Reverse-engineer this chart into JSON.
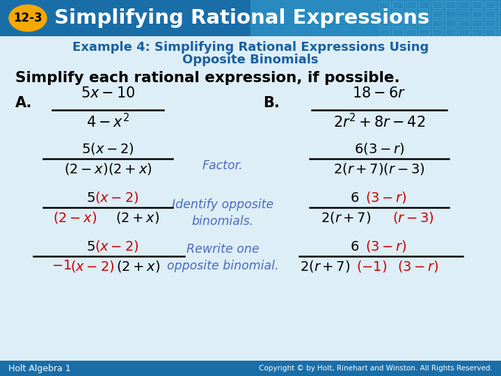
{
  "bg_color": "#ddeef6",
  "header_bg": "#1a6ea8",
  "header_bg2": "#3aaedc",
  "badge_color": "#f5a800",
  "badge_text": "12-3",
  "header_title": "Simplifying Rational Expressions",
  "example_title_line1": "Example 4: Simplifying Rational Expressions Using",
  "example_title_line2": "Opposite Binomials",
  "example_title_color": "#1a5fa0",
  "simplify_text": "Simplify each rational expression, if possible.",
  "blue_annot": "#4a6abf",
  "red_color": "#cc0000",
  "black": "#000000",
  "white": "#ffffff",
  "footer_bg": "#1a6ea8",
  "footer_left": "Holt Algebra 1",
  "footer_right": "Copyright © by Holt, Rinehart and Winston. All Rights Reserved."
}
